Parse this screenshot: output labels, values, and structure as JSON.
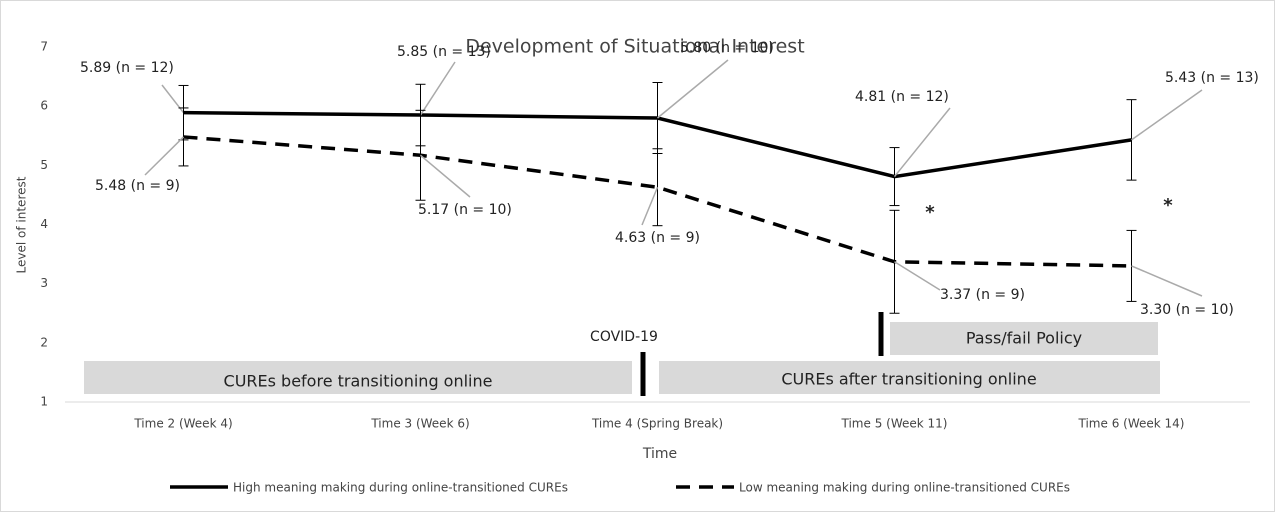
{
  "chart_data": {
    "type": "line",
    "title": "Development of Situational Interest",
    "x_label": "Time",
    "y_label": "Level of interest",
    "categories": [
      "Time 2 (Week 4)",
      "Time 3 (Week 6)",
      "Time 4 (Spring Break)",
      "Time 5 (Week 11)",
      "Time 6 (Week 14)"
    ],
    "ylim": [
      1,
      7
    ],
    "yticks": [
      1,
      2,
      3,
      4,
      5,
      6,
      7
    ],
    "series": [
      {
        "name": "High meaning making during online-transitioned CUREs",
        "color": "#000000",
        "dash": false,
        "values": [
          5.89,
          5.85,
          5.8,
          4.81,
          5.43
        ],
        "errors": [
          0.46,
          0.52,
          0.6,
          0.49,
          0.68
        ],
        "value_labels": [
          "5.89 (n = 12)",
          "5.85 (n = 13)",
          "5.80 (n = 10)",
          "4.81 (n = 12)",
          "5.43 (n = 13)"
        ]
      },
      {
        "name": "Low meaning making during online-transitioned CUREs",
        "color": "#000000",
        "dash": true,
        "values": [
          5.48,
          5.17,
          4.63,
          3.37,
          3.3
        ],
        "errors": [
          0.49,
          0.76,
          0.65,
          0.87,
          0.6
        ],
        "value_labels": [
          "5.48 (n = 9)",
          "5.17 (n = 10)",
          "4.63 (n = 9)",
          "3.37 (n = 9)",
          "3.30 (n = 10)"
        ]
      }
    ],
    "annotations": [
      "*",
      "*",
      "COVID-19"
    ],
    "phases": [
      "CUREs before transitioning online",
      "CUREs after transitioning online",
      "Pass/fail Policy"
    ]
  }
}
